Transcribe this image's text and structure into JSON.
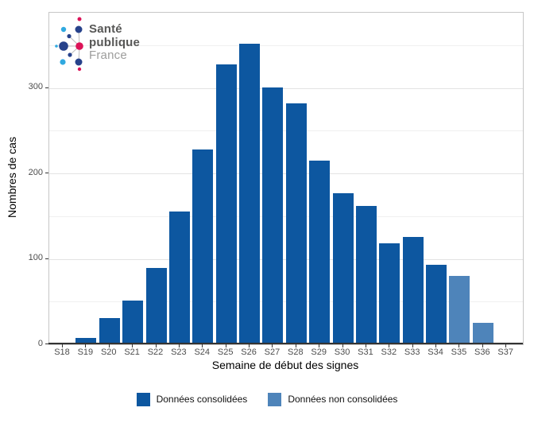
{
  "logo": {
    "brand_line1": "Santé",
    "brand_line2": "publique",
    "brand_line3": "France"
  },
  "chart_data": {
    "type": "bar",
    "title": "",
    "xlabel": "Semaine de début des signes",
    "ylabel": "Nombres de cas",
    "categories": [
      "S18",
      "S19",
      "S20",
      "S21",
      "S22",
      "S23",
      "S24",
      "S25",
      "S26",
      "S27",
      "S28",
      "S29",
      "S30",
      "S31",
      "S32",
      "S33",
      "S34",
      "S35",
      "S36",
      "S37"
    ],
    "series": [
      {
        "name": "Données consolidées",
        "color": "#0D57A0",
        "values": [
          0,
          7,
          31,
          51,
          89,
          155,
          228,
          328,
          352,
          301,
          282,
          215,
          177,
          162,
          118,
          126,
          93,
          null,
          null,
          null
        ]
      },
      {
        "name": "Données non consolidées",
        "color": "#4E84BA",
        "values": [
          null,
          null,
          null,
          null,
          null,
          null,
          null,
          null,
          null,
          null,
          null,
          null,
          null,
          null,
          null,
          null,
          null,
          80,
          25,
          2
        ]
      }
    ],
    "ylim": [
      0,
      388
    ],
    "y_ticks": [
      0,
      100,
      200,
      300
    ],
    "y_minor_ticks": [
      50,
      150,
      250,
      350
    ],
    "grid": true,
    "legend_position": "bottom"
  },
  "colors": {
    "bar_consolidated": "#0D57A0",
    "bar_non_consolidated": "#4E84BA",
    "grid_major": "#E3E3E3",
    "grid_minor": "#F0F0F0",
    "panel_border": "#C6C6C6",
    "axis_line": "#333333",
    "tick_text": "#4D4D4D",
    "logo_navy": "#27428B",
    "logo_cyan": "#30A9E0",
    "logo_crimson": "#DC1358",
    "logo_link": "#BDBDBD",
    "logo_text_dark": "#575756",
    "logo_text_light": "#9D9D9C"
  }
}
